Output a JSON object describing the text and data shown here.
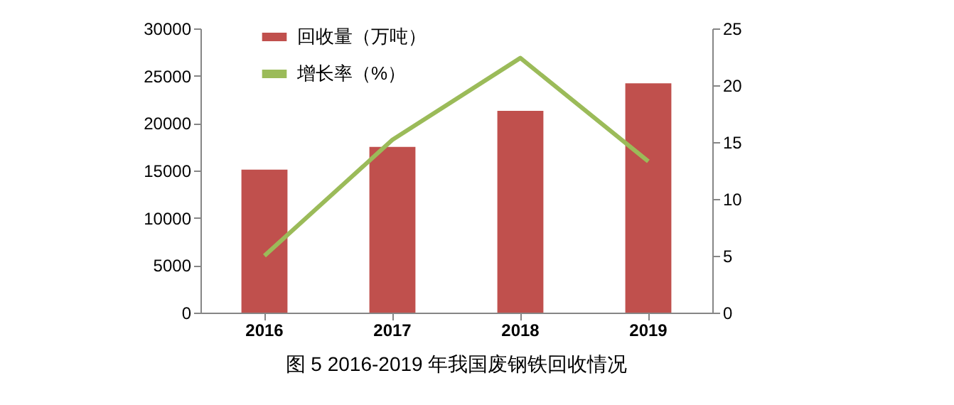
{
  "chart_data": {
    "type": "bar",
    "title": "图 5  2016-2019 年我国废钢铁回收情况",
    "categories": [
      "2016",
      "2017",
      "2018",
      "2019"
    ],
    "series": [
      {
        "name": "回收量（万吨）",
        "color": "#c0504d",
        "values": [
          15100,
          17500,
          21300,
          24200
        ]
      },
      {
        "name": "增长率（%）",
        "type": "line",
        "axis": "y2",
        "color": "#9bbb59",
        "values": [
          5.0,
          15.2,
          22.4,
          13.3
        ]
      }
    ],
    "ylim": [
      0,
      30000
    ],
    "yticks": [
      0,
      5000,
      10000,
      15000,
      20000,
      25000,
      30000
    ],
    "y2lim": [
      0,
      25
    ],
    "y2ticks": [
      0,
      5,
      10,
      15,
      20,
      25
    ],
    "legend": "top left",
    "marker": "none"
  }
}
